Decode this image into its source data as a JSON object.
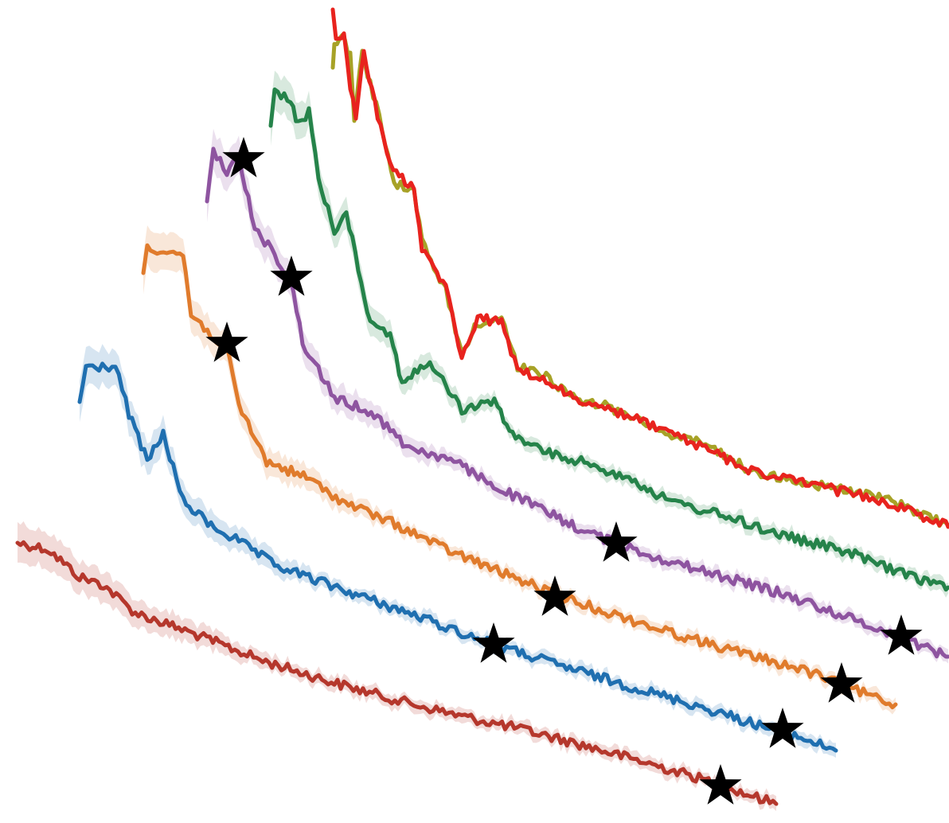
{
  "chart_data": {
    "type": "line",
    "title": "",
    "xlabel": "",
    "ylabel": "",
    "grid": false,
    "axes_visible": false,
    "legend": "none",
    "marker_color": "#000000",
    "series": [
      {
        "name": "",
        "color": "#b5372c",
        "band": true,
        "points": [
          [
            22,
            682
          ],
          [
            60,
            690
          ],
          [
            100,
            725
          ],
          [
            130,
            735
          ],
          [
            170,
            770
          ],
          [
            240,
            795
          ],
          [
            330,
            830
          ],
          [
            420,
            858
          ],
          [
            500,
            880
          ],
          [
            580,
            900
          ],
          [
            650,
            915
          ],
          [
            720,
            933
          ],
          [
            800,
            955
          ],
          [
            870,
            975
          ],
          [
            930,
            995
          ],
          [
            975,
            1010
          ]
        ],
        "markers": [
          [
            905,
            988
          ]
        ]
      },
      {
        "name": "",
        "color": "#1f6fb0",
        "band": true,
        "points": [
          [
            100,
            505
          ],
          [
            108,
            462
          ],
          [
            145,
            460
          ],
          [
            162,
            520
          ],
          [
            185,
            580
          ],
          [
            205,
            545
          ],
          [
            230,
            630
          ],
          [
            265,
            660
          ],
          [
            300,
            680
          ],
          [
            345,
            710
          ],
          [
            400,
            730
          ],
          [
            470,
            755
          ],
          [
            540,
            780
          ],
          [
            620,
            810
          ],
          [
            700,
            835
          ],
          [
            790,
            862
          ],
          [
            870,
            885
          ],
          [
            950,
            910
          ],
          [
            1010,
            928
          ],
          [
            1050,
            943
          ]
        ],
        "markers": [
          [
            620,
            810
          ],
          [
            983,
            917
          ]
        ]
      },
      {
        "name": "",
        "color": "#e07b2c",
        "band": true,
        "points": [
          [
            180,
            343
          ],
          [
            185,
            310
          ],
          [
            230,
            320
          ],
          [
            240,
            395
          ],
          [
            285,
            440
          ],
          [
            300,
            510
          ],
          [
            335,
            580
          ],
          [
            385,
            600
          ],
          [
            430,
            630
          ],
          [
            500,
            660
          ],
          [
            560,
            690
          ],
          [
            620,
            715
          ],
          [
            700,
            748
          ],
          [
            780,
            775
          ],
          [
            860,
            800
          ],
          [
            930,
            820
          ],
          [
            1010,
            842
          ],
          [
            1060,
            862
          ],
          [
            1125,
            885
          ]
        ],
        "markers": [
          [
            285,
            432
          ],
          [
            697,
            751
          ],
          [
            1057,
            860
          ]
        ]
      },
      {
        "name": "",
        "color": "#8e54a0",
        "band": true,
        "points": [
          [
            260,
            253
          ],
          [
            268,
            190
          ],
          [
            285,
            215
          ],
          [
            300,
            200
          ],
          [
            320,
            285
          ],
          [
            345,
            320
          ],
          [
            365,
            350
          ],
          [
            380,
            430
          ],
          [
            420,
            500
          ],
          [
            470,
            520
          ],
          [
            510,
            560
          ],
          [
            570,
            580
          ],
          [
            620,
            610
          ],
          [
            680,
            640
          ],
          [
            730,
            665
          ],
          [
            775,
            683
          ],
          [
            840,
            705
          ],
          [
            910,
            725
          ],
          [
            980,
            745
          ],
          [
            1050,
            770
          ],
          [
            1130,
            800
          ],
          [
            1192,
            825
          ]
        ],
        "markers": [
          [
            306,
            200
          ],
          [
            366,
            349
          ],
          [
            774,
            683
          ],
          [
            1132,
            800
          ]
        ]
      },
      {
        "name": "",
        "color": "#25834a",
        "band": true,
        "points": [
          [
            340,
            158
          ],
          [
            345,
            112
          ],
          [
            365,
            130
          ],
          [
            375,
            155
          ],
          [
            388,
            140
          ],
          [
            400,
            225
          ],
          [
            420,
            290
          ],
          [
            435,
            265
          ],
          [
            465,
            405
          ],
          [
            490,
            420
          ],
          [
            505,
            480
          ],
          [
            540,
            455
          ],
          [
            580,
            515
          ],
          [
            625,
            505
          ],
          [
            640,
            545
          ],
          [
            690,
            570
          ],
          [
            730,
            580
          ],
          [
            790,
            600
          ],
          [
            840,
            630
          ],
          [
            900,
            645
          ],
          [
            960,
            665
          ],
          [
            1010,
            680
          ],
          [
            1070,
            695
          ],
          [
            1130,
            720
          ],
          [
            1192,
            738
          ]
        ]
      },
      {
        "name": "",
        "color": "#a7a227",
        "band": false,
        "points": [
          [
            418,
            85
          ],
          [
            420,
            55
          ],
          [
            430,
            48
          ],
          [
            440,
            68
          ],
          [
            445,
            150
          ],
          [
            455,
            65
          ],
          [
            465,
            105
          ],
          [
            480,
            160
          ],
          [
            495,
            230
          ],
          [
            520,
            240
          ],
          [
            530,
            305
          ],
          [
            560,
            365
          ],
          [
            580,
            445
          ],
          [
            600,
            405
          ],
          [
            630,
            400
          ],
          [
            650,
            460
          ],
          [
            690,
            475
          ],
          [
            720,
            500
          ],
          [
            760,
            510
          ],
          [
            800,
            525
          ],
          [
            840,
            545
          ],
          [
            890,
            560
          ],
          [
            940,
            590
          ],
          [
            1000,
            605
          ],
          [
            1060,
            615
          ],
          [
            1120,
            630
          ],
          [
            1192,
            660
          ]
        ]
      },
      {
        "name": "",
        "color": "#e8231e",
        "band": false,
        "points": [
          [
            418,
            12
          ],
          [
            422,
            48
          ],
          [
            432,
            45
          ],
          [
            440,
            110
          ],
          [
            447,
            150
          ],
          [
            457,
            60
          ],
          [
            467,
            115
          ],
          [
            478,
            160
          ],
          [
            494,
            215
          ],
          [
            520,
            235
          ],
          [
            530,
            315
          ],
          [
            560,
            360
          ],
          [
            580,
            448
          ],
          [
            600,
            400
          ],
          [
            630,
            405
          ],
          [
            650,
            465
          ],
          [
            690,
            480
          ],
          [
            720,
            500
          ],
          [
            760,
            515
          ],
          [
            800,
            525
          ],
          [
            840,
            545
          ],
          [
            890,
            565
          ],
          [
            940,
            590
          ],
          [
            1000,
            605
          ],
          [
            1060,
            618
          ],
          [
            1120,
            632
          ],
          [
            1192,
            662
          ]
        ]
      }
    ]
  }
}
